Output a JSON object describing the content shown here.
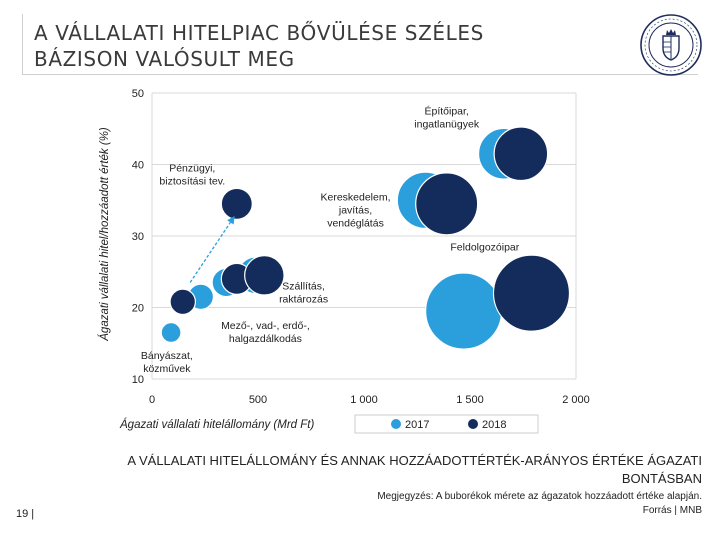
{
  "slide": {
    "title": "A VÁLLALATI HITELPIAC BŐVÜLÉSE SZÉLES\nBÁZISON VALÓSULT MEG",
    "caption": "A VÁLLALATI HITELÁLLOMÁNY ÉS ANNAK HOZZÁADOTTÉRTÉK-ARÁNYOS ÉRTÉKE ÁGAZATI BONTÁSBAN",
    "note": "Megjegyzés: A buborékok mérete az ágazatok hozzáadott értéke alapján.",
    "source": "Forrás | MNB",
    "page_number": "19 |"
  },
  "colors": {
    "series_2017": "#2a9fdc",
    "series_2018": "#142c5c",
    "grid": "#d9d9d9",
    "arrow": "#2a9fdc"
  },
  "logo": {
    "icon": "mnb-seal-icon",
    "color": "#1f2d5c"
  },
  "chart_data": {
    "type": "scatter",
    "subtype": "bubble",
    "xlabel": "Ágazati vállalati hitelállomány (Mrd Ft)",
    "ylabel": "Ágazati vállalati hitel/hozzáadott érték (%)",
    "xlim": [
      0,
      2000
    ],
    "ylim": [
      10,
      50
    ],
    "x_ticks": [
      0,
      500,
      1000,
      1500,
      2000
    ],
    "x_tick_labels": [
      "0",
      "500",
      "1 000",
      "1 500",
      "2 000"
    ],
    "y_ticks": [
      10,
      20,
      30,
      40,
      50
    ],
    "y_tick_labels": [
      "10",
      "20",
      "30",
      "40",
      "50"
    ],
    "grid": "horizontal",
    "legend_position": "bottom-right",
    "series": [
      {
        "name": "2017",
        "points": [
          {
            "x": 90,
            "y": 16.5,
            "size": 0.35
          },
          {
            "x": 230,
            "y": 21.5,
            "size": 0.45
          },
          {
            "x": 350,
            "y": 23.5,
            "size": 0.5
          },
          {
            "x": 490,
            "y": 24.5,
            "size": 0.65
          },
          {
            "x": 1290,
            "y": 35,
            "size": 1.0
          },
          {
            "x": 1470,
            "y": 19.5,
            "size": 1.35
          },
          {
            "x": 1660,
            "y": 41.5,
            "size": 0.9
          }
        ]
      },
      {
        "name": "2018",
        "points": [
          {
            "x": 145,
            "y": 20.8,
            "size": 0.45
          },
          {
            "x": 400,
            "y": 34.5,
            "size": 0.55
          },
          {
            "x": 400,
            "y": 24,
            "size": 0.55
          },
          {
            "x": 530,
            "y": 24.5,
            "size": 0.7
          },
          {
            "x": 1390,
            "y": 34.5,
            "size": 1.1
          },
          {
            "x": 1790,
            "y": 22,
            "size": 1.35
          },
          {
            "x": 1740,
            "y": 41.5,
            "size": 0.95
          }
        ]
      }
    ],
    "annotations": [
      {
        "text": "Építőipar,\ningatlanügyek",
        "x": 1390,
        "y": 47
      },
      {
        "text": "Pénzügyi,\nbiztosítási tev.",
        "x": 190,
        "y": 39
      },
      {
        "text": "Kereskedelem,\njavítás,\nvendéglátás",
        "x": 960,
        "y": 35
      },
      {
        "text": "Feldolgozóipar",
        "x": 1570,
        "y": 28
      },
      {
        "text": "Szállítás,\nraktározás",
        "x": 715,
        "y": 22.5
      },
      {
        "text": "Mező-, vad-, erdő-,\nhalgazdálkodás",
        "x": 535,
        "y": 17
      },
      {
        "text": "Bányászat,\nközművek",
        "x": 70,
        "y": 12.8
      }
    ],
    "arrow": {
      "from": {
        "x": 180,
        "y": 23.5
      },
      "to": {
        "x": 390,
        "y": 32.8
      }
    }
  }
}
